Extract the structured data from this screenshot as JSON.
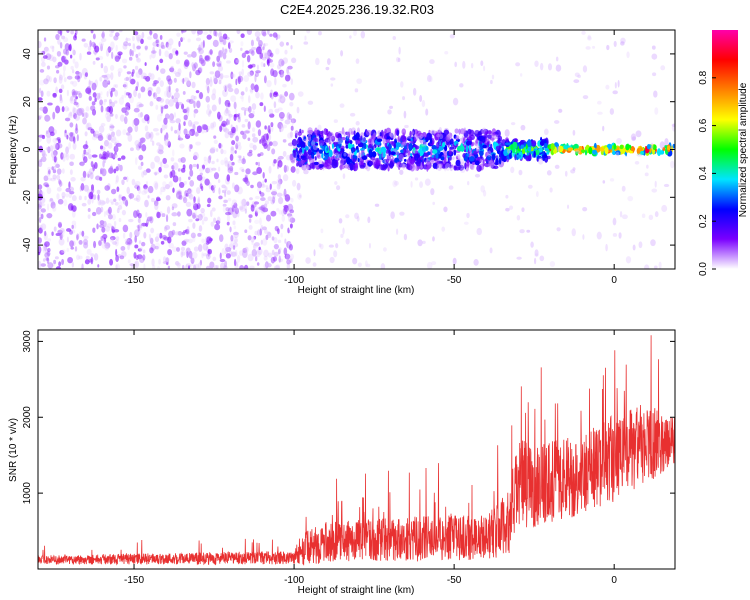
{
  "title": "C2E4.2025.236.19.32.R03",
  "colors": {
    "snr_line": "#e83030",
    "axis": "#000000",
    "background": "#ffffff"
  },
  "chart_data": [
    {
      "type": "heatmap",
      "xlabel": "Height of straight line (km)",
      "ylabel": "Frequency (Hz)",
      "xlim": [
        -180,
        19
      ],
      "ylim": [
        -50,
        50
      ],
      "xticks": [
        -150,
        -100,
        -50,
        0
      ],
      "yticks": [
        -40,
        -20,
        0,
        20,
        40
      ],
      "grid": false,
      "colorbar": {
        "label": "Normalized spectral amplitude",
        "range": [
          0,
          1
        ],
        "ticks": [
          0.0,
          0.2,
          0.4,
          0.6,
          0.8
        ],
        "tick_labels": [
          "0.0",
          "0.2",
          "0.4",
          "0.6",
          "0.8"
        ],
        "colormap": [
          "#ffffff",
          "#7a00ff",
          "#0000ff",
          "#00e5ff",
          "#00ff00",
          "#ffff00",
          "#ff8000",
          "#ff0000",
          "#ff00aa"
        ]
      },
      "regions": [
        {
          "x_range": [
            -180,
            -100
          ],
          "freq_range": [
            -50,
            50
          ],
          "amplitude_range": [
            0.02,
            0.12
          ],
          "description_value": "broadband noise"
        },
        {
          "x_range": [
            -100,
            -35
          ],
          "freq_range": [
            -8,
            8
          ],
          "amplitude_range": [
            0.05,
            0.45
          ]
        },
        {
          "x_range": [
            -35,
            -20
          ],
          "freq_range": [
            -4,
            4
          ],
          "amplitude_range": [
            0.3,
            0.6
          ]
        },
        {
          "x_range": [
            -20,
            19
          ],
          "freq_range": [
            -1.5,
            1.5
          ],
          "amplitude_range": [
            0.6,
            1.0
          ]
        }
      ]
    },
    {
      "type": "line",
      "xlabel": "Height of straight line (km)",
      "ylabel": "SNR (10 * v/v)",
      "xlim": [
        -180,
        19
      ],
      "ylim": [
        0,
        3150
      ],
      "xticks": [
        -150,
        -100,
        -50,
        0
      ],
      "yticks": [
        1000,
        2000,
        3000
      ],
      "grid": false,
      "series": [
        {
          "envelope": [
            {
              "x": -180,
              "mean": 120,
              "spread": 100
            },
            {
              "x": -100,
              "mean": 150,
              "spread": 150
            },
            {
              "x": -98,
              "mean": 250,
              "spread": 350
            },
            {
              "x": -90,
              "mean": 350,
              "spread": 450
            },
            {
              "x": -80,
              "mean": 380,
              "spread": 450
            },
            {
              "x": -60,
              "mean": 400,
              "spread": 500
            },
            {
              "x": -40,
              "mean": 420,
              "spread": 500
            },
            {
              "x": -33,
              "mean": 600,
              "spread": 700
            },
            {
              "x": -30,
              "mean": 1100,
              "spread": 1000
            },
            {
              "x": -20,
              "mean": 1150,
              "spread": 900
            },
            {
              "x": -10,
              "mean": 1250,
              "spread": 900
            },
            {
              "x": 0,
              "mean": 1450,
              "spread": 1000
            },
            {
              "x": 10,
              "mean": 1650,
              "spread": 900
            },
            {
              "x": 19,
              "mean": 1700,
              "spread": 500
            }
          ]
        }
      ]
    }
  ]
}
